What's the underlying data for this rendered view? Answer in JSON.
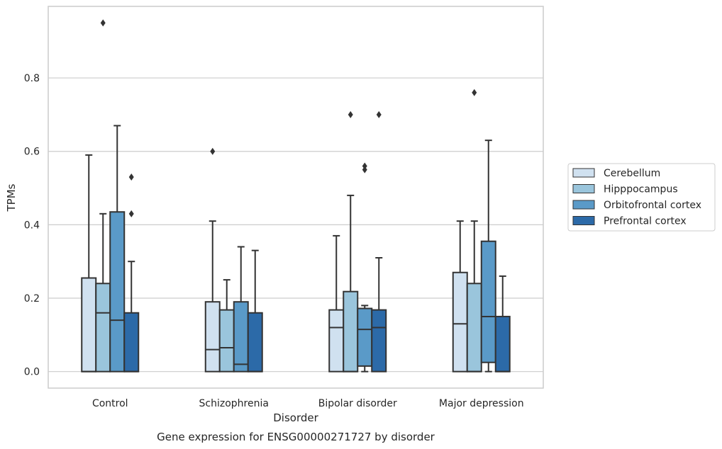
{
  "caption": "Gene expression for ENSG00000271727 by disorder",
  "chart_data": {
    "type": "box",
    "xlabel": "Disorder",
    "ylabel": "TPMs",
    "ylim": [
      -0.045,
      0.995
    ],
    "yticks": [
      "0.0",
      "0.2",
      "0.4",
      "0.6",
      "0.8"
    ],
    "grid": true,
    "legend_position": "right",
    "categories": [
      "Control",
      "Schizophrenia",
      "Bipolar disorder",
      "Major depression"
    ],
    "series": [
      {
        "name": "Cerebellum",
        "color": "#d0e1f0",
        "boxes": [
          {
            "whisker_low": 0.0,
            "q1": 0.0,
            "median": 0.0,
            "q3": 0.255,
            "whisker_high": 0.59,
            "outliers": []
          },
          {
            "whisker_low": 0.0,
            "q1": 0.0,
            "median": 0.06,
            "q3": 0.19,
            "whisker_high": 0.41,
            "outliers": [
              0.6
            ]
          },
          {
            "whisker_low": 0.0,
            "q1": 0.0,
            "median": 0.12,
            "q3": 0.168,
            "whisker_high": 0.37,
            "outliers": []
          },
          {
            "whisker_low": 0.0,
            "q1": 0.0,
            "median": 0.13,
            "q3": 0.27,
            "whisker_high": 0.41,
            "outliers": []
          }
        ]
      },
      {
        "name": "Hipppocampus",
        "color": "#9ac5dc",
        "boxes": [
          {
            "whisker_low": 0.0,
            "q1": 0.0,
            "median": 0.16,
            "q3": 0.24,
            "whisker_high": 0.43,
            "outliers": [
              0.95
            ]
          },
          {
            "whisker_low": 0.0,
            "q1": 0.0,
            "median": 0.065,
            "q3": 0.168,
            "whisker_high": 0.25,
            "outliers": []
          },
          {
            "whisker_low": 0.0,
            "q1": 0.0,
            "median": 0.0,
            "q3": 0.218,
            "whisker_high": 0.48,
            "outliers": [
              0.7
            ]
          },
          {
            "whisker_low": 0.0,
            "q1": 0.0,
            "median": 0.0,
            "q3": 0.24,
            "whisker_high": 0.41,
            "outliers": [
              0.76
            ]
          }
        ]
      },
      {
        "name": "Orbitofrontal cortex",
        "color": "#5a9ac8",
        "boxes": [
          {
            "whisker_low": 0.0,
            "q1": 0.0,
            "median": 0.14,
            "q3": 0.435,
            "whisker_high": 0.67,
            "outliers": []
          },
          {
            "whisker_low": 0.0,
            "q1": 0.0,
            "median": 0.02,
            "q3": 0.19,
            "whisker_high": 0.34,
            "outliers": []
          },
          {
            "whisker_low": 0.0,
            "q1": 0.015,
            "median": 0.115,
            "q3": 0.172,
            "whisker_high": 0.18,
            "outliers": [
              0.55,
              0.56
            ]
          },
          {
            "whisker_low": 0.0,
            "q1": 0.025,
            "median": 0.15,
            "q3": 0.355,
            "whisker_high": 0.63,
            "outliers": []
          }
        ]
      },
      {
        "name": "Prefrontal cortex",
        "color": "#2c6aa8",
        "boxes": [
          {
            "whisker_low": 0.0,
            "q1": 0.0,
            "median": 0.0,
            "q3": 0.16,
            "whisker_high": 0.3,
            "outliers": [
              0.43,
              0.53
            ]
          },
          {
            "whisker_low": 0.0,
            "q1": 0.0,
            "median": 0.0,
            "q3": 0.16,
            "whisker_high": 0.33,
            "outliers": []
          },
          {
            "whisker_low": 0.0,
            "q1": 0.0,
            "median": 0.12,
            "q3": 0.168,
            "whisker_high": 0.31,
            "outliers": [
              0.7
            ]
          },
          {
            "whisker_low": 0.0,
            "q1": 0.0,
            "median": 0.0,
            "q3": 0.15,
            "whisker_high": 0.26,
            "outliers": []
          }
        ]
      }
    ]
  }
}
